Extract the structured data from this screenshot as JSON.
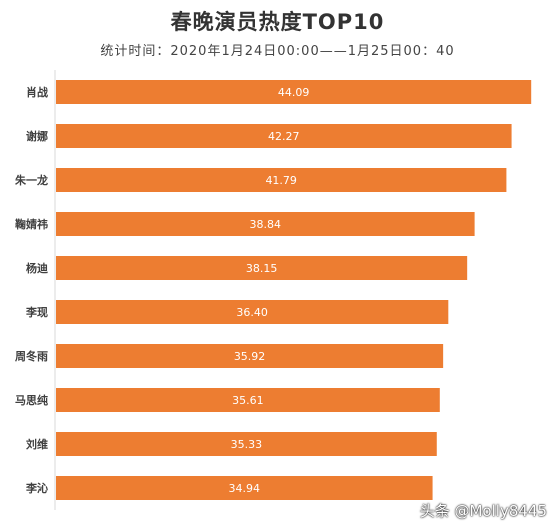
{
  "chart_data": {
    "type": "bar",
    "orientation": "horizontal",
    "title": "春晚演员热度TOP10",
    "subtitle": "统计时间：2020年1月24日00:00——1月25日00：40",
    "categories": [
      "肖战",
      "谢娜",
      "朱一龙",
      "鞠婧祎",
      "杨迪",
      "李现",
      "周冬雨",
      "马思纯",
      "刘维",
      "李沁"
    ],
    "values": [
      44.09,
      42.27,
      41.79,
      38.84,
      38.15,
      36.4,
      35.92,
      35.61,
      35.33,
      34.94
    ],
    "xlim": [
      0,
      45
    ],
    "grid": false,
    "bar_color": "#ED7D31",
    "label_color": "#ffffff"
  },
  "watermark": "头条 @Molly8445"
}
